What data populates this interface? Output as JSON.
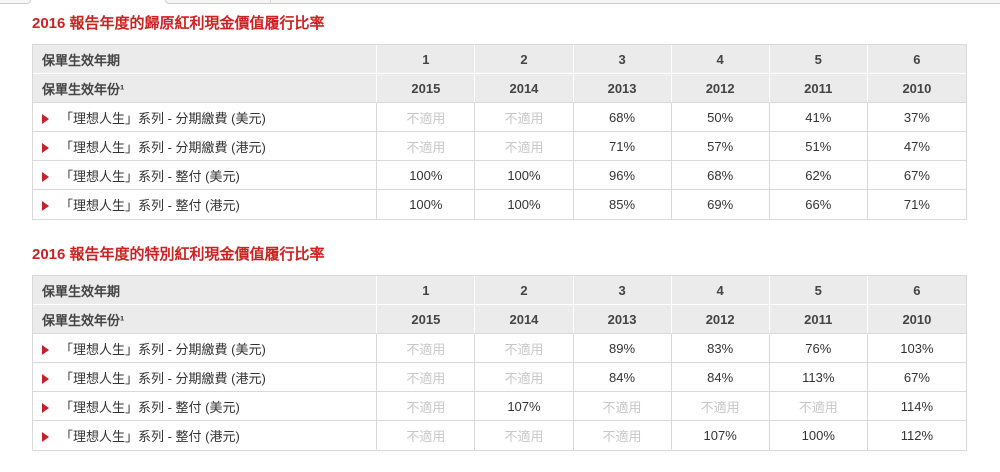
{
  "colors": {
    "title_red": "#cc2222",
    "arrow_red": "#c8202a",
    "header_bg": "#ebebeb",
    "border_gray": "#d9d9d9",
    "na_text_gray": "#c7c7c7",
    "text_dark": "#333333"
  },
  "na_value": "不適用",
  "tables": [
    {
      "title": "2016 報告年度的歸原紅利現金價值履行比率",
      "header_row_1": {
        "label": "保單生效年期",
        "values": [
          "1",
          "2",
          "3",
          "4",
          "5",
          "6"
        ]
      },
      "header_row_2": {
        "label": "保單生效年份¹",
        "values": [
          "2015",
          "2014",
          "2013",
          "2012",
          "2011",
          "2010"
        ]
      },
      "rows": [
        {
          "label": "「理想人生」系列 - 分期繳費 (美元)",
          "values": [
            "不適用",
            "不適用",
            "68%",
            "50%",
            "41%",
            "37%"
          ]
        },
        {
          "label": "「理想人生」系列 - 分期繳費 (港元)",
          "values": [
            "不適用",
            "不適用",
            "71%",
            "57%",
            "51%",
            "47%"
          ]
        },
        {
          "label": "「理想人生」系列 - 整付 (美元)",
          "values": [
            "100%",
            "100%",
            "96%",
            "68%",
            "62%",
            "67%"
          ]
        },
        {
          "label": "「理想人生」系列 - 整付 (港元)",
          "values": [
            "100%",
            "100%",
            "85%",
            "69%",
            "66%",
            "71%"
          ]
        }
      ]
    },
    {
      "title": "2016 報告年度的特別紅利現金價值履行比率",
      "header_row_1": {
        "label": "保單生效年期",
        "values": [
          "1",
          "2",
          "3",
          "4",
          "5",
          "6"
        ]
      },
      "header_row_2": {
        "label": "保單生效年份¹",
        "values": [
          "2015",
          "2014",
          "2013",
          "2012",
          "2011",
          "2010"
        ]
      },
      "rows": [
        {
          "label": "「理想人生」系列 - 分期繳費 (美元)",
          "values": [
            "不適用",
            "不適用",
            "89%",
            "83%",
            "76%",
            "103%"
          ]
        },
        {
          "label": "「理想人生」系列 - 分期繳費 (港元)",
          "values": [
            "不適用",
            "不適用",
            "84%",
            "84%",
            "113%",
            "67%"
          ]
        },
        {
          "label": "「理想人生」系列 - 整付 (美元)",
          "values": [
            "不適用",
            "107%",
            "不適用",
            "不適用",
            "不適用",
            "114%"
          ]
        },
        {
          "label": "「理想人生」系列 - 整付 (港元)",
          "values": [
            "不適用",
            "不適用",
            "不適用",
            "107%",
            "100%",
            "112%"
          ]
        }
      ]
    }
  ]
}
